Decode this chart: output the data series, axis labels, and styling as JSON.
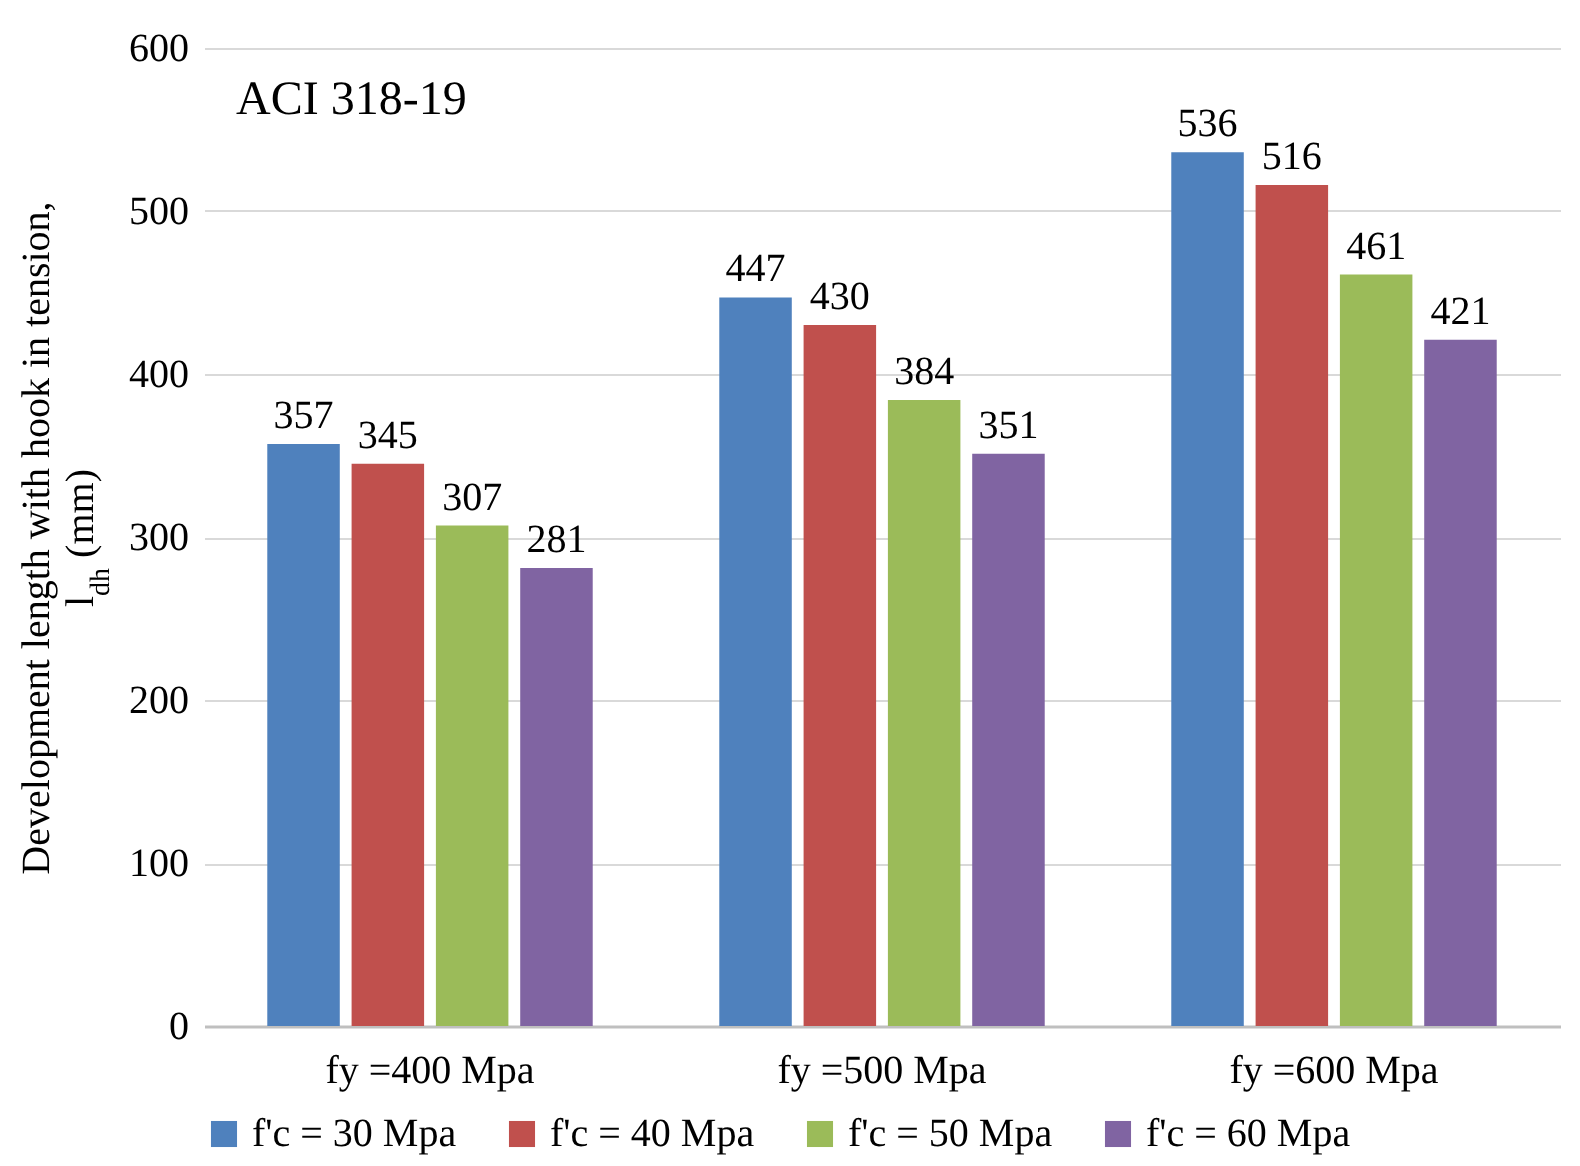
{
  "chart_data": {
    "type": "bar",
    "ylabel": "Development length with hook in tension, l$_{dh}$ (mm)",
    "annotations": [
      "ACI 318-19"
    ],
    "categories": [
      "fy =400 Mpa",
      "fy =500 Mpa",
      "fy =600 Mpa"
    ],
    "series": [
      {
        "name": "f'c = 30 Mpa",
        "color": "#4f81bd",
        "values": [
          357,
          447,
          536
        ]
      },
      {
        "name": "f'c = 40 Mpa",
        "color": "#c0504d",
        "values": [
          345,
          430,
          516
        ]
      },
      {
        "name": "f'c = 50 Mpa",
        "color": "#9bbb59",
        "values": [
          307,
          384,
          461
        ]
      },
      {
        "name": "f'c = 60 Mpa",
        "color": "#8064a2",
        "values": [
          281,
          351,
          421
        ]
      }
    ],
    "ylim": [
      0,
      600
    ],
    "yticks": [
      0,
      100,
      200,
      300,
      400,
      500,
      600
    ],
    "grid": "y",
    "legend": "bottom",
    "data_labels": true
  }
}
